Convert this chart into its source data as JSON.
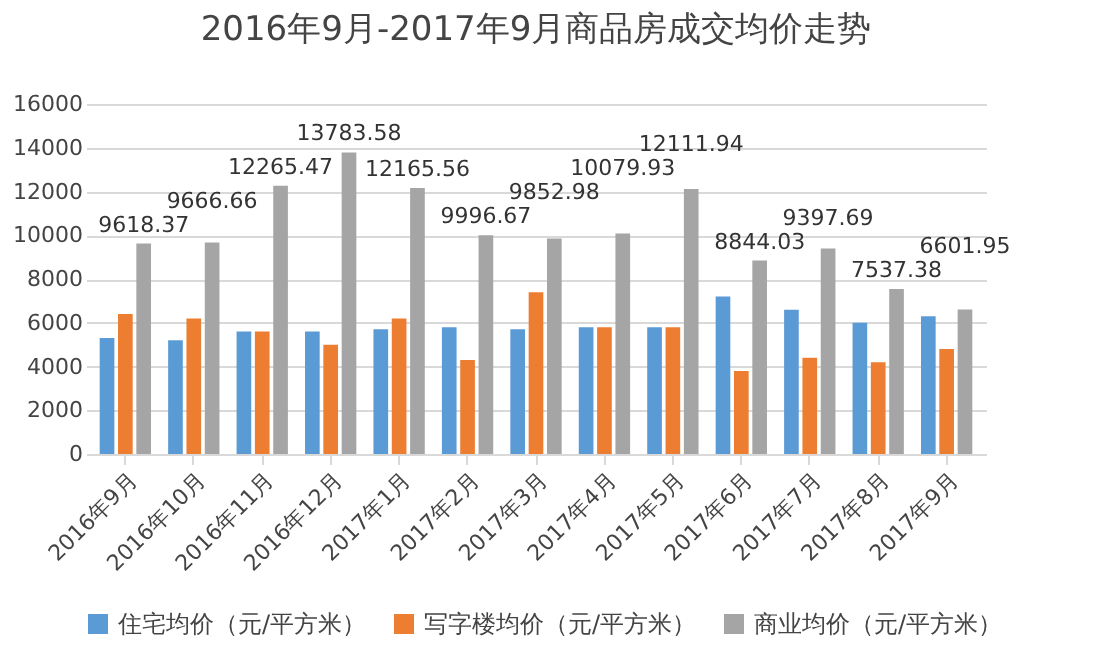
{
  "chart_data": {
    "type": "bar",
    "title": "2016年9月-2017年9月商品房成交均价走势",
    "categories": [
      "2016年9月",
      "2016年10月",
      "2016年11月",
      "2016年12月",
      "2017年1月",
      "2017年2月",
      "2017年3月",
      "2017年4月",
      "2017年5月",
      "2017年6月",
      "2017年7月",
      "2017年8月",
      "2017年9月"
    ],
    "series": [
      {
        "name": "住宅均价（元/平方米）",
        "color": "#5b9bd5",
        "values": [
          5300,
          5200,
          5600,
          5600,
          5700,
          5800,
          5700,
          5800,
          5800,
          7200,
          6600,
          6000,
          6300
        ]
      },
      {
        "name": "写字楼均价（元/平方米）",
        "color": "#ed7d31",
        "values": [
          6400,
          6200,
          5600,
          5000,
          6200,
          4300,
          7400,
          5800,
          5800,
          3800,
          4400,
          4200,
          4800
        ]
      },
      {
        "name": "商业均价（元/平方米）",
        "color": "#a5a5a5",
        "values": [
          9618.37,
          9666.66,
          12265.47,
          13783.58,
          12165.56,
          9996.67,
          9852.98,
          10079.93,
          12111.94,
          8844.03,
          9397.69,
          7537.38,
          6601.95
        ],
        "value_labels": [
          "9618.37",
          "9666.66",
          "12265.47",
          "13783.58",
          "12165.56",
          "9996.67",
          "9852.98",
          "10079.93",
          "12111.94",
          "8844.03",
          "9397.69",
          "7537.38",
          "6601.95"
        ]
      }
    ],
    "ylim": [
      0,
      16000
    ],
    "yticks": [
      0,
      2000,
      4000,
      6000,
      8000,
      10000,
      12000,
      14000,
      16000
    ],
    "grid": "y",
    "legend": "bottom"
  }
}
